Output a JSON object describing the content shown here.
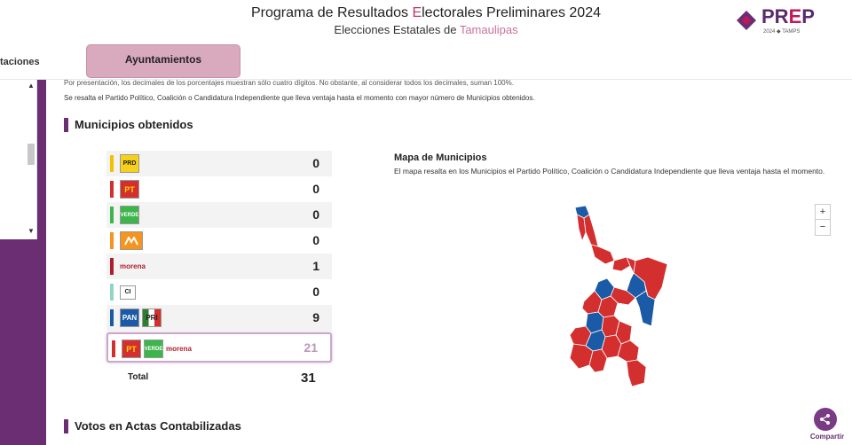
{
  "header": {
    "title_part1": "Programa de Resultados ",
    "title_highlight": "E",
    "title_part2": "lectorales Preliminares 2024",
    "subtitle_prefix": "Elecciones Estatales de ",
    "subtitle_state": "Tamaulipas"
  },
  "logo": {
    "word_p": "PR",
    "word_e": "E",
    "word_end": "P",
    "tagline": "2024 ◆ TAMPS"
  },
  "tabs": {
    "previous": "taciones",
    "active": "Ayuntamientos"
  },
  "notes": {
    "line1": "Por presentación, los decimales de los porcentajes muestran sólo cuatro dígitos. No obstante, al considerar todos los decimales, suman 100%.",
    "line2": "Se resalta el Partido Político, Coalición o Candidatura Independiente que lleva ventaja hasta el momento con mayor número de Municipios obtenidos."
  },
  "sections": {
    "municipios": "Municipios obtenidos",
    "votos": "Votos en Actas Contabilizadas"
  },
  "rows": [
    {
      "party": "PRD",
      "count": "0"
    },
    {
      "party": "PT",
      "count": "0"
    },
    {
      "party": "VERDE",
      "count": "0"
    },
    {
      "party": "MC",
      "count": "0"
    },
    {
      "party": "morena",
      "count": "1"
    },
    {
      "party": "CI",
      "count": "0"
    },
    {
      "party": "PAN-PRI",
      "count": "9"
    },
    {
      "party": "PT-VERDE-morena",
      "count": "21"
    }
  ],
  "logo_text": {
    "pt": "PT",
    "verde": "VERDE",
    "morena": "morena",
    "ci": "CI",
    "pan": "PAN",
    "pri": "PRI",
    "prd": "PRD"
  },
  "total": {
    "label": "Total",
    "value": "31"
  },
  "map": {
    "title": "Mapa de Municipios",
    "description": "El mapa resalta en los Municipios el Partido Político, Coalición o Candidatura Independiente que lleva ventaja hasta el momento.",
    "zoom_in": "+",
    "zoom_out": "−"
  },
  "share": {
    "label": "Compartir"
  },
  "colors": {
    "purple": "#6b2e73",
    "pink_tab": "#d9a9bd",
    "morena": "#b01e2e",
    "pan_blue": "#1a5aa6",
    "red": "#d32f2f"
  }
}
